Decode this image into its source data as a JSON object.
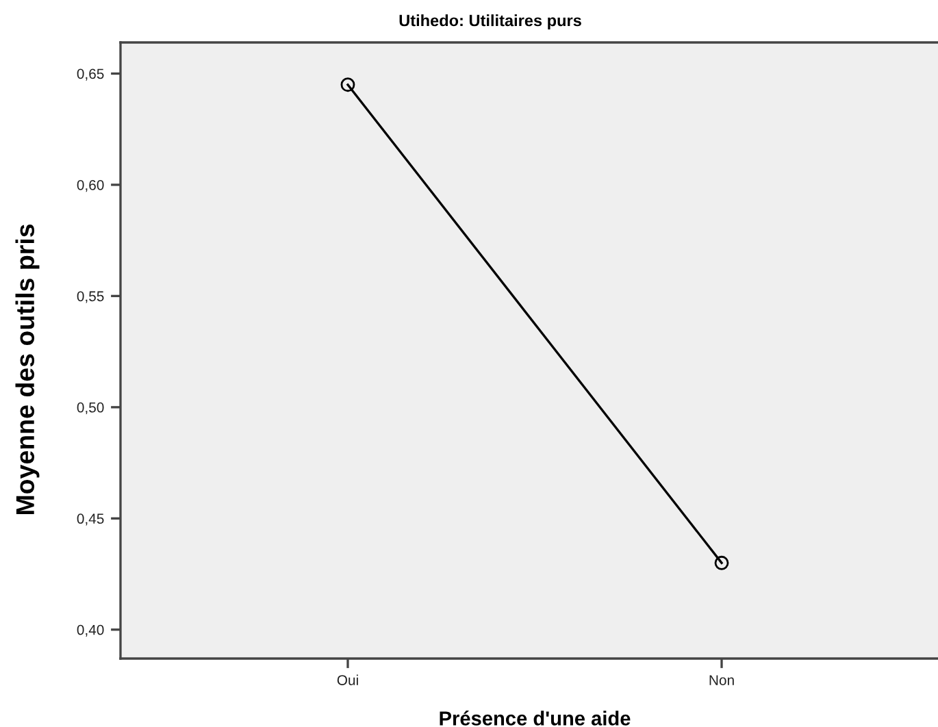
{
  "chart_data": {
    "type": "line",
    "title": "Utihedo: Utilitaires purs",
    "xlabel": "Présence d'une aide",
    "ylabel": "Moyenne des outils pris",
    "categories": [
      "Oui",
      "Non"
    ],
    "series": [
      {
        "color": "#000000",
        "values": [
          0.645,
          0.43
        ]
      }
    ],
    "ylim": [
      0.387,
      0.664
    ],
    "yticks": [
      {
        "value": 0.4,
        "label": "0,40"
      },
      {
        "value": 0.45,
        "label": "0,45"
      },
      {
        "value": 0.5,
        "label": "0,50"
      },
      {
        "value": 0.55,
        "label": "0,55"
      },
      {
        "value": 0.6,
        "label": "0,60"
      },
      {
        "value": 0.65,
        "label": "0,65"
      }
    ],
    "marker": "circle",
    "line_style": "solid",
    "grid": false
  }
}
